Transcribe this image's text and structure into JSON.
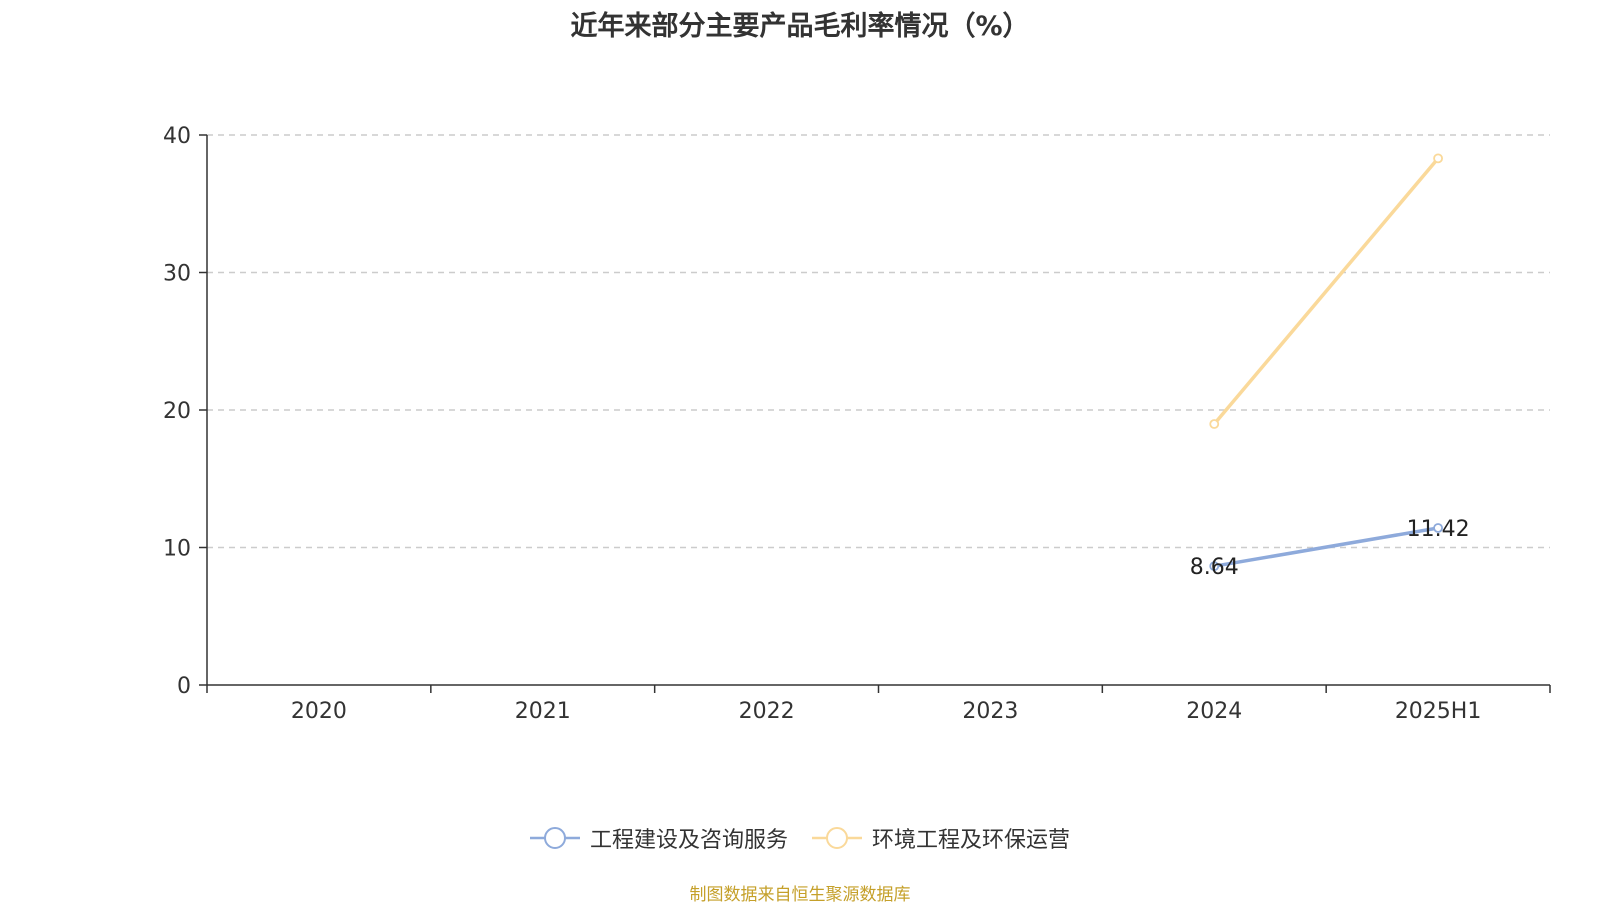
{
  "chart_data": {
    "type": "line",
    "title": "近年来部分主要产品毛利率情况（%）",
    "categories": [
      "2020",
      "2021",
      "2022",
      "2023",
      "2024",
      "2025H1"
    ],
    "ylim": [
      0,
      40
    ],
    "yticks": [
      0,
      10,
      20,
      30,
      40
    ],
    "grid": true,
    "legend_position": "bottom",
    "series": [
      {
        "name": "工程建设及咨询服务",
        "color": "#8eaadb",
        "values": [
          null,
          null,
          null,
          null,
          8.64,
          11.42
        ],
        "labels": [
          null,
          null,
          null,
          null,
          "8.64",
          "11.42"
        ]
      },
      {
        "name": "环境工程及环保运营",
        "color": "#fad99a",
        "values": [
          null,
          null,
          null,
          null,
          18.98,
          38.3
        ],
        "labels": [
          null,
          null,
          null,
          null,
          null,
          null
        ]
      }
    ]
  },
  "footer": {
    "source": "制图数据来自恒生聚源数据库"
  }
}
